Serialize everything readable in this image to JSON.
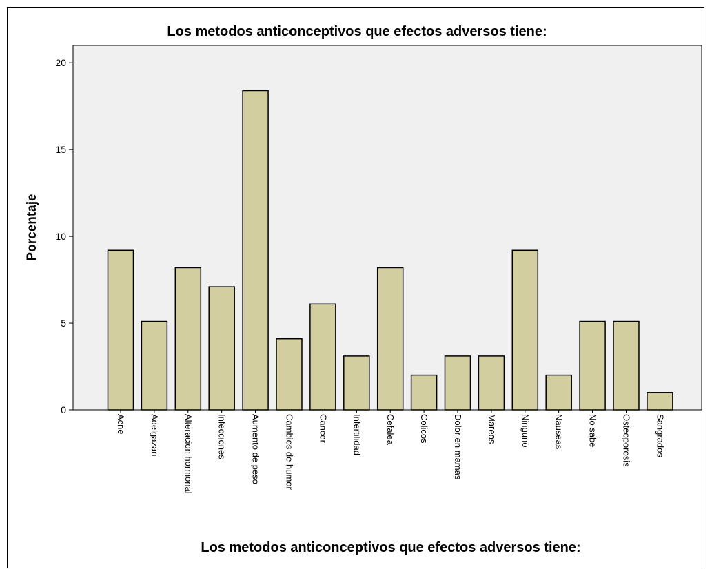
{
  "chart_data": {
    "type": "bar",
    "title": "Los metodos anticonceptivos que efectos adversos tiene:",
    "xlabel": "Los metodos anticonceptivos que efectos adversos tiene:",
    "ylabel": "Porcentaje",
    "ylim": [
      0,
      21
    ],
    "yticks": [
      "0",
      "5",
      "10",
      "15",
      "20"
    ],
    "grid": false,
    "categories": [
      "Acne",
      "Adelgazan",
      "Alteracion hormonal",
      "Infecciones",
      "Aumento de peso",
      "Cambios de humor",
      "Cancer",
      "Infertilidad",
      "Cefalea",
      "Colicos",
      "Dolor en mamas",
      "Mareos",
      "Ninguno",
      "Nauseas",
      "No sabe",
      "Osteoporosis",
      "Sangrados"
    ],
    "values": [
      9.2,
      5.1,
      8.2,
      7.1,
      18.4,
      4.1,
      6.1,
      3.1,
      8.2,
      2.0,
      3.1,
      3.1,
      9.2,
      2.0,
      5.1,
      5.1,
      1.0
    ],
    "colors": {
      "bar_fill": "#d3cea0",
      "bar_stroke": "#000000",
      "plot_background": "#f0f0f0"
    }
  }
}
